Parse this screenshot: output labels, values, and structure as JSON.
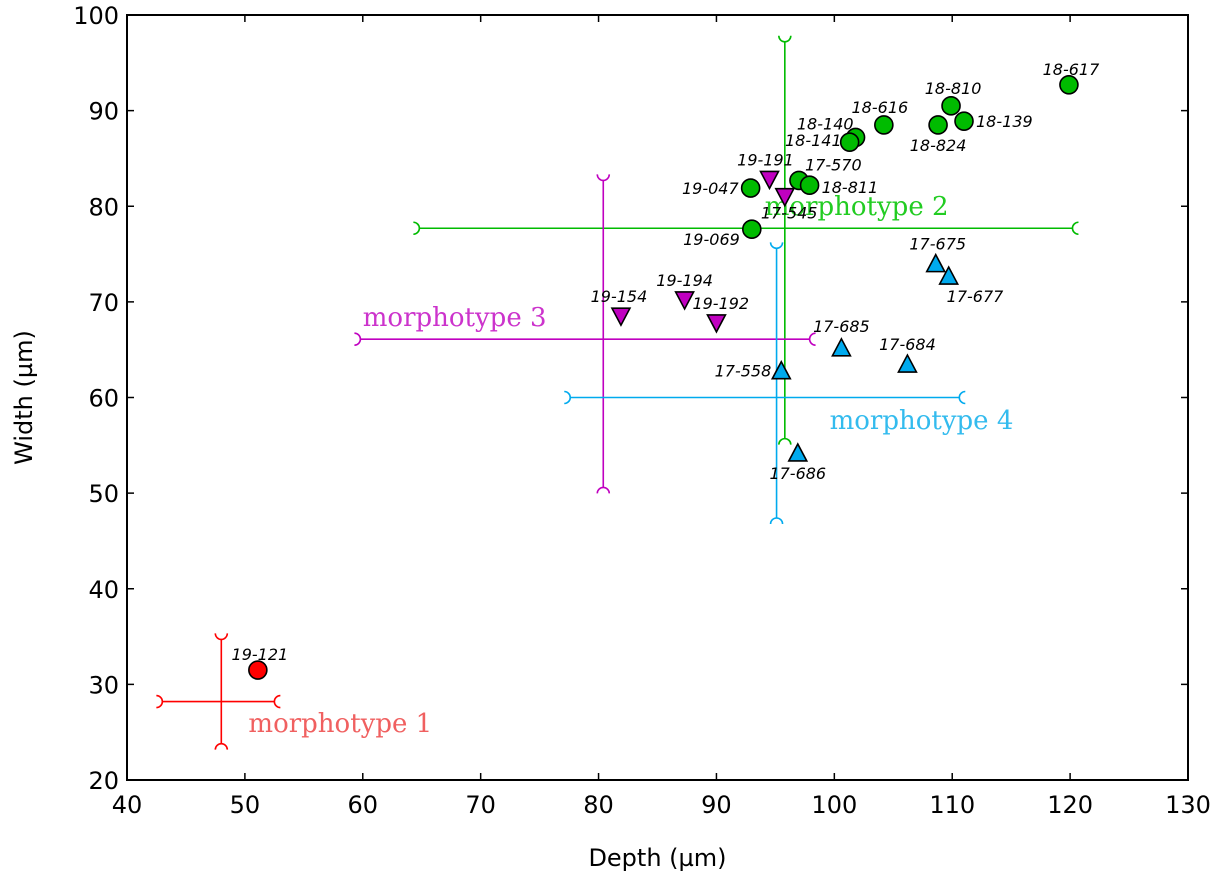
{
  "chart_data": {
    "type": "scatter",
    "title": "",
    "xlabel": "Depth (µm)",
    "ylabel": "Width (µm)",
    "xlim": [
      40,
      130
    ],
    "ylim": [
      20,
      100
    ],
    "xticks": [
      40,
      50,
      60,
      70,
      80,
      90,
      100,
      110,
      120,
      130
    ],
    "yticks": [
      20,
      30,
      40,
      50,
      60,
      70,
      80,
      90,
      100
    ],
    "grid": false,
    "groups": [
      {
        "name": "morphotype 1",
        "color": "#ff0000",
        "label_color": "#f06060",
        "marker": "circle",
        "label_at": [
          50.3,
          25.0
        ],
        "range_x": [
          43.0,
          52.5
        ],
        "range_y_at": 28.2,
        "range_y": [
          23.8,
          34.7
        ],
        "range_x_at": 48.0
      },
      {
        "name": "morphotype 2",
        "color": "#00bb00",
        "label_color": "#22cc22",
        "marker": "circle",
        "label_at": [
          94.1,
          79.1
        ],
        "range_x": [
          64.8,
          120.2
        ],
        "range_y_at": 77.7,
        "range_y": [
          55.7,
          97.2
        ],
        "range_x_at": 95.8
      },
      {
        "name": "morphotype 3",
        "color": "#c000c0",
        "label_color": "#cc33cc",
        "marker": "triangle-down",
        "label_at": [
          60.0,
          67.5
        ],
        "range_x": [
          59.8,
          97.9
        ],
        "range_y_at": 66.1,
        "range_y": [
          50.6,
          82.7
        ],
        "range_x_at": 80.4
      },
      {
        "name": "morphotype 4",
        "color": "#00aaee",
        "label_color": "#33bbee",
        "marker": "triangle-up",
        "label_at": [
          99.6,
          56.7
        ],
        "range_x": [
          77.6,
          110.6
        ],
        "range_y_at": 60.0,
        "range_y": [
          47.4,
          75.6
        ],
        "range_x_at": 95.1
      }
    ],
    "points": [
      {
        "label": "19-121",
        "group": 0,
        "x": 51.1,
        "y": 31.5,
        "dx": 2,
        "dy": -10,
        "anchor": "middle"
      },
      {
        "label": "18-617",
        "group": 1,
        "x": 119.9,
        "y": 92.7,
        "dx": 2,
        "dy": -10,
        "anchor": "middle"
      },
      {
        "label": "18-810",
        "group": 1,
        "x": 109.9,
        "y": 90.5,
        "dx": 2,
        "dy": -12,
        "anchor": "middle"
      },
      {
        "label": "18-139",
        "group": 1,
        "x": 111.0,
        "y": 88.9,
        "dx": 12,
        "dy": 6,
        "anchor": "start"
      },
      {
        "label": "18-824",
        "group": 1,
        "x": 108.8,
        "y": 88.5,
        "dx": 0,
        "dy": 26,
        "anchor": "middle"
      },
      {
        "label": "18-616",
        "group": 1,
        "x": 104.2,
        "y": 88.5,
        "dx": -4,
        "dy": -12,
        "anchor": "middle"
      },
      {
        "label": "18-140",
        "group": 1,
        "x": 101.8,
        "y": 87.2,
        "dx": -2,
        "dy": -8,
        "anchor": "end"
      },
      {
        "label": "18-141",
        "group": 1,
        "x": 101.3,
        "y": 86.7,
        "dx": -8,
        "dy": 4,
        "anchor": "end"
      },
      {
        "label": "17-570",
        "group": 1,
        "x": 97.0,
        "y": 82.7,
        "dx": 6,
        "dy": -10,
        "anchor": "start"
      },
      {
        "label": "18-811",
        "group": 1,
        "x": 97.9,
        "y": 82.2,
        "dx": 12,
        "dy": 8,
        "anchor": "start"
      },
      {
        "label": "19-047",
        "group": 1,
        "x": 92.9,
        "y": 81.9,
        "dx": -12,
        "dy": 6,
        "anchor": "end"
      },
      {
        "label": "19-069",
        "group": 1,
        "x": 93.0,
        "y": 77.6,
        "dx": -12,
        "dy": 16,
        "anchor": "end"
      },
      {
        "label": "19-191",
        "group": 2,
        "x": 94.5,
        "y": 82.8,
        "dx": -4,
        "dy": -14,
        "anchor": "middle"
      },
      {
        "label": "17-545",
        "group": 2,
        "x": 95.8,
        "y": 81.0,
        "dx": -24,
        "dy": 22,
        "anchor": "start"
      },
      {
        "label": "19-194",
        "group": 2,
        "x": 87.3,
        "y": 70.2,
        "dx": 0,
        "dy": -14,
        "anchor": "middle"
      },
      {
        "label": "19-154",
        "group": 2,
        "x": 81.9,
        "y": 68.5,
        "dx": -2,
        "dy": -14,
        "anchor": "middle"
      },
      {
        "label": "19-192",
        "group": 2,
        "x": 90.0,
        "y": 67.8,
        "dx": -24,
        "dy": -14,
        "anchor": "start"
      },
      {
        "label": "17-675",
        "group": 3,
        "x": 108.6,
        "y": 74.0,
        "dx": 2,
        "dy": -14,
        "anchor": "middle"
      },
      {
        "label": "17-677",
        "group": 3,
        "x": 109.7,
        "y": 72.7,
        "dx": -2,
        "dy": 26,
        "anchor": "start"
      },
      {
        "label": "17-685",
        "group": 3,
        "x": 100.6,
        "y": 65.2,
        "dx": 0,
        "dy": -16,
        "anchor": "middle"
      },
      {
        "label": "17-684",
        "group": 3,
        "x": 106.2,
        "y": 63.5,
        "dx": 0,
        "dy": -14,
        "anchor": "middle"
      },
      {
        "label": "17-558",
        "group": 3,
        "x": 95.5,
        "y": 62.8,
        "dx": -10,
        "dy": 6,
        "anchor": "end"
      },
      {
        "label": "17-686",
        "group": 3,
        "x": 96.9,
        "y": 54.2,
        "dx": 0,
        "dy": 26,
        "anchor": "middle"
      }
    ]
  }
}
